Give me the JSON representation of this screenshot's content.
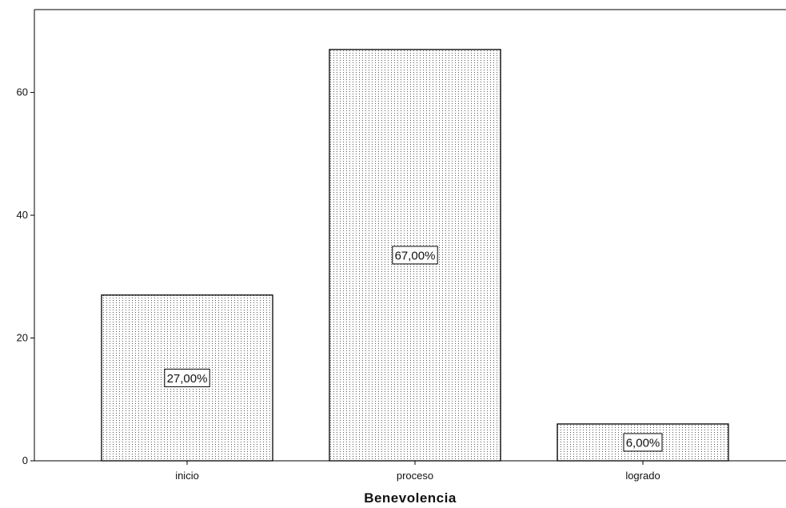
{
  "chart_data": {
    "type": "bar",
    "categories": [
      "inicio",
      "proceso",
      "logrado"
    ],
    "values": [
      27,
      67,
      6
    ],
    "data_labels": [
      "27,00%",
      "67,00%",
      "6,00%"
    ],
    "xlabel": "Benevolencia",
    "ylabel": "",
    "ylim": [
      0,
      73.5
    ],
    "yticks": [
      0,
      20,
      40,
      60
    ],
    "ytick_labels": [
      "0",
      "20",
      "40",
      "60"
    ],
    "grid": false,
    "bar_fill": "dotted-vertical-pattern",
    "bar_outline_color": "#000000",
    "bar_dot_color": "#555555"
  }
}
